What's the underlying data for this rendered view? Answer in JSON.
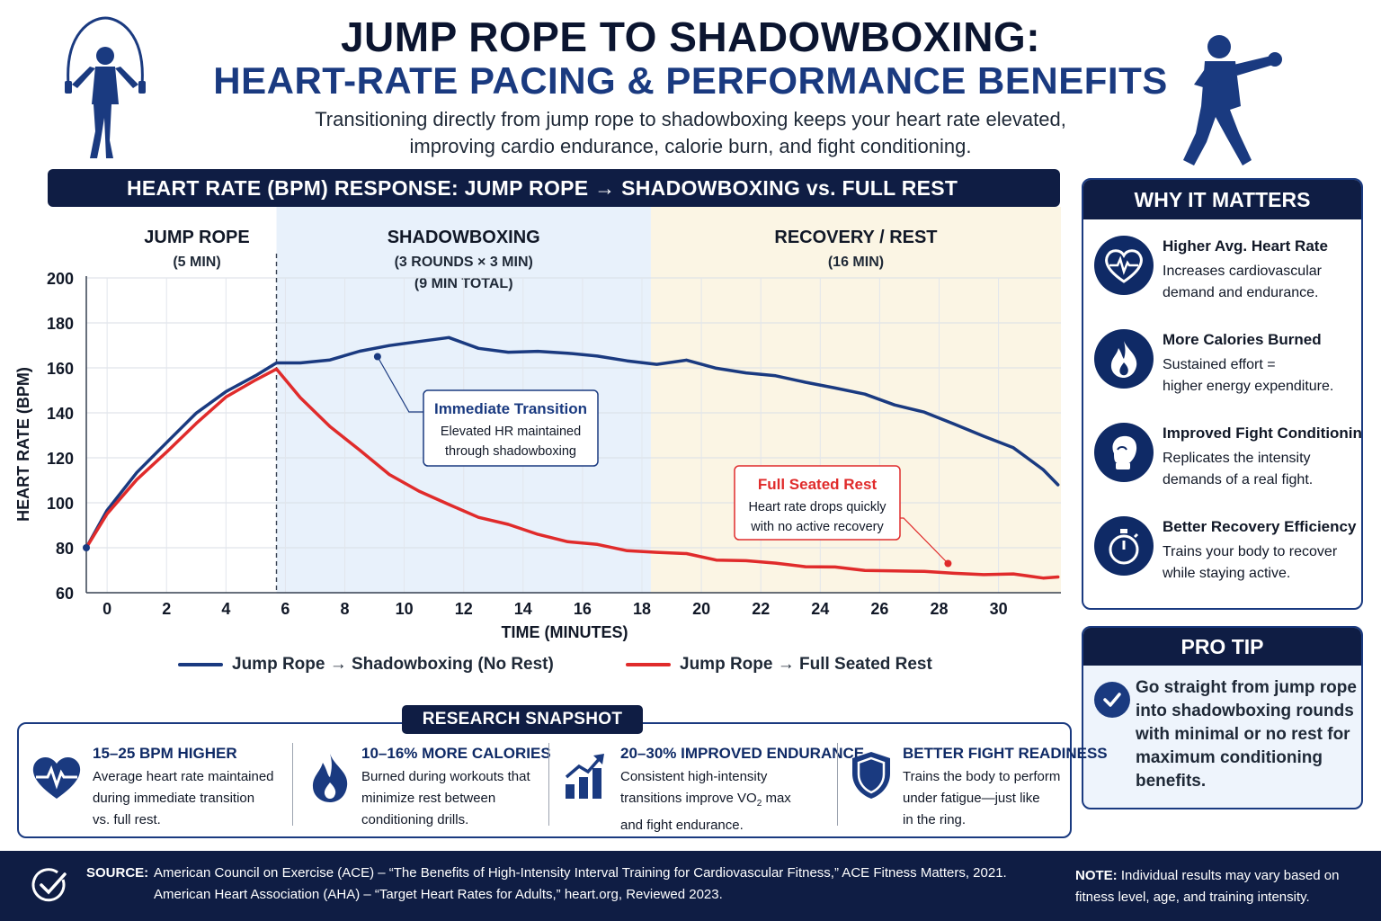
{
  "header": {
    "title_line1": "JUMP ROPE TO SHADOWBOXING:",
    "title_line2": "HEART-RATE PACING & PERFORMANCE BENEFITS",
    "subtitle_line1": "Transitioning directly from jump rope to shadowboxing keeps your heart rate elevated,",
    "subtitle_line2": "improving cardio endurance, calorie burn, and fight conditioning."
  },
  "chart_data": {
    "type": "line",
    "title": "HEART RATE (BPM) RESPONSE:  JUMP ROPE → SHADOWBOXING vs. FULL REST",
    "xlabel": "TIME (MINUTES)",
    "ylabel": "HEART RATE (BPM)",
    "xlim": [
      -0.7,
      32.1
    ],
    "ylim": [
      60,
      200
    ],
    "x_ticks": [
      0,
      2,
      4,
      6,
      8,
      10,
      12,
      14,
      16,
      18,
      20,
      22,
      24,
      26,
      28,
      30
    ],
    "y_ticks": [
      60,
      80,
      100,
      120,
      140,
      160,
      180,
      200
    ],
    "grid": true,
    "legend_position": "bottom",
    "phases": [
      {
        "label": "JUMP ROPE",
        "sub1": "(5 MIN)",
        "sub2": "",
        "x_start": -0.7,
        "x_end": 5.7,
        "color": "#ffffff"
      },
      {
        "label": "SHADOWBOXING",
        "sub1": "(3 ROUNDS × 3 MIN)",
        "sub2": "(9 MIN TOTAL)",
        "x_start": 5.7,
        "x_end": 18.3,
        "color": "#e8f1fb"
      },
      {
        "label": "RECOVERY / REST",
        "sub1": "(16 MIN)",
        "sub2": "",
        "x_start": 18.3,
        "x_end": 32.1,
        "color": "#fbf5e4"
      }
    ],
    "transition_x": 5.7,
    "series": [
      {
        "name": "Jump Rope → Shadowboxing (No Rest)",
        "color": "#1a3a80",
        "x": [
          -0.7,
          0,
          1,
          2,
          3,
          4,
          5,
          5.7,
          6.5,
          7.5,
          8.5,
          9.5,
          10.5,
          11.5,
          12.5,
          13.5,
          14.5,
          15.5,
          16.5,
          17.5,
          18.5,
          19.5,
          20.5,
          21.5,
          22.5,
          23.5,
          24.5,
          25.5,
          26.5,
          27.5,
          28.5,
          29.5,
          30.5,
          31.5,
          32.0
        ],
        "y": [
          80,
          97,
          113,
          127,
          140,
          149,
          157,
          162,
          162,
          164,
          167,
          170,
          172,
          173,
          169,
          167,
          167,
          167,
          165,
          163,
          162,
          163,
          160,
          158,
          156,
          154,
          151,
          148,
          144,
          140,
          135,
          130,
          124,
          115,
          108
        ]
      },
      {
        "name": "Jump Rope → Full Seated Rest",
        "color": "#e02b2b",
        "x": [
          -0.7,
          0,
          1,
          2,
          3,
          4,
          5,
          5.7,
          6.5,
          7.5,
          8.5,
          9.5,
          10.5,
          11.5,
          12.5,
          13.5,
          14.5,
          15.5,
          16.5,
          17.5,
          18.5,
          19.5,
          20.5,
          21.5,
          22.5,
          23.5,
          24.5,
          25.5,
          26.5,
          27.5,
          28.5,
          29.5,
          30.5,
          31.5,
          32.0
        ],
        "y": [
          80,
          95,
          110,
          123,
          135,
          147,
          155,
          159,
          147,
          134,
          123,
          113,
          105,
          99,
          94,
          90,
          86,
          83,
          81,
          79,
          78,
          77,
          75,
          74,
          73,
          72,
          71,
          70,
          70,
          69,
          69,
          68,
          68,
          67,
          67
        ]
      }
    ],
    "annotations": [
      {
        "title": "Immediate Transition",
        "line1": "Elevated HR maintained",
        "line2": "through shadowboxing",
        "point_x": 9.1,
        "point_y": 165,
        "color": "#1a3a80"
      },
      {
        "title": "Full Seated Rest",
        "line1": "Heart rate drops quickly",
        "line2": "with no active recovery",
        "point_x": 28.3,
        "point_y": 73,
        "color": "#e02b2b"
      }
    ]
  },
  "legend": {
    "no_rest": "Jump Rope → Shadowboxing (No Rest)",
    "full_rest": "Jump Rope → Full Seated Rest"
  },
  "side": {
    "heading": "WHY IT MATTERS",
    "items": [
      {
        "icon": "heart-pulse-icon",
        "title": "Higher Avg. Heart Rate",
        "line1": "Increases cardiovascular",
        "line2": "demand and endurance."
      },
      {
        "icon": "flame-icon",
        "title": "More Calories Burned",
        "line1": "Sustained effort =",
        "line2": "higher energy expenditure."
      },
      {
        "icon": "boxing-glove-icon",
        "title": "Improved Fight Conditioning",
        "line1": "Replicates the intensity",
        "line2": "demands of a real fight."
      },
      {
        "icon": "stopwatch-icon",
        "title": "Better Recovery Efficiency",
        "line1": "Trains your body to recover",
        "line2": "while staying active."
      }
    ]
  },
  "tip": {
    "heading": "PRO TIP",
    "text": "Go straight from jump rope into shadowboxing rounds with minimal or no rest for maximum conditioning benefits."
  },
  "research": {
    "heading": "RESEARCH SNAPSHOT",
    "items": [
      {
        "icon": "heart-pulse-icon",
        "title": "15–25 BPM HIGHER",
        "line1": "Average heart rate maintained",
        "line2": "during immediate transition",
        "line3": "vs. full rest."
      },
      {
        "icon": "flame-icon",
        "title": "10–16% MORE CALORIES",
        "line1": "Burned during workouts that",
        "line2": "minimize rest between",
        "line3": "conditioning drills."
      },
      {
        "icon": "growth-chart-icon",
        "title": "20–30% IMPROVED ENDURANCE",
        "line1": "Consistent high-intensity",
        "line2a": "transitions improve VO",
        "line2_sub": "2",
        "line2b": " max",
        "line3": "and fight endurance."
      },
      {
        "icon": "shield-icon",
        "title": "BETTER FIGHT READINESS",
        "line1": "Trains the body to perform",
        "line2": "under fatigue—just like",
        "line3": "in the ring."
      }
    ]
  },
  "footer": {
    "source_label": "SOURCE:",
    "source1": "American Council on Exercise (ACE) – “The Benefits of High-Intensity Interval Training for Cardiovascular Fitness,” ACE Fitness Matters, 2021.",
    "source2": "American Heart Association (AHA) – “Target Heart Rates for Adults,” heart.org, Reviewed 2023.",
    "note_label": "NOTE:",
    "note_text": " Individual results may vary based on fitness level, age, and training intensity."
  },
  "colors": {
    "navy": "#0f1d44",
    "blue": "#1a3a80",
    "red": "#e02b2b"
  }
}
